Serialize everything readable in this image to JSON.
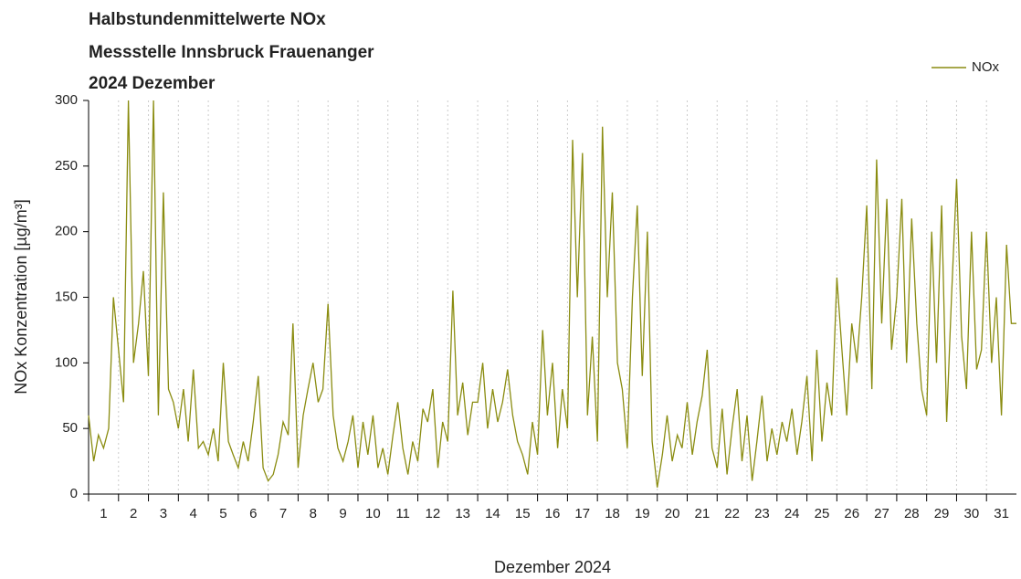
{
  "chart_data": {
    "type": "line",
    "title": "Halbstundenmittelwerte NOx",
    "subtitle": [
      "Messstelle Innsbruck Frauenanger",
      "2024 Dezember"
    ],
    "xlabel": "Dezember 2024",
    "ylabel": "NOx Konzentration [µg/m³]",
    "xlim": [
      1,
      32
    ],
    "xticks": [
      1,
      2,
      3,
      4,
      5,
      6,
      7,
      8,
      9,
      10,
      11,
      12,
      13,
      14,
      15,
      16,
      17,
      18,
      19,
      20,
      21,
      22,
      23,
      24,
      25,
      26,
      27,
      28,
      29,
      30,
      31
    ],
    "ylim": [
      0,
      300
    ],
    "yticks": [
      0,
      50,
      100,
      150,
      200,
      250,
      300
    ],
    "grid": true,
    "legend": "upper right",
    "x": [
      1,
      1.17,
      1.33,
      1.5,
      1.67,
      1.83,
      2,
      2.17,
      2.33,
      2.5,
      2.67,
      2.83,
      3,
      3.17,
      3.33,
      3.5,
      3.67,
      3.83,
      4,
      4.17,
      4.33,
      4.5,
      4.67,
      4.83,
      5,
      5.17,
      5.33,
      5.5,
      5.67,
      5.83,
      6,
      6.17,
      6.33,
      6.5,
      6.67,
      6.83,
      7,
      7.17,
      7.33,
      7.5,
      7.67,
      7.83,
      8,
      8.17,
      8.33,
      8.5,
      8.67,
      8.83,
      9,
      9.17,
      9.33,
      9.5,
      9.67,
      9.83,
      10,
      10.17,
      10.33,
      10.5,
      10.67,
      10.83,
      11,
      11.17,
      11.33,
      11.5,
      11.67,
      11.83,
      12,
      12.17,
      12.33,
      12.5,
      12.67,
      12.83,
      13,
      13.17,
      13.33,
      13.5,
      13.67,
      13.83,
      14,
      14.17,
      14.33,
      14.5,
      14.67,
      14.83,
      15,
      15.17,
      15.33,
      15.5,
      15.67,
      15.83,
      16,
      16.17,
      16.33,
      16.5,
      16.67,
      16.83,
      17,
      17.17,
      17.33,
      17.5,
      17.67,
      17.83,
      18,
      18.17,
      18.33,
      18.5,
      18.67,
      18.83,
      19,
      19.17,
      19.33,
      19.5,
      19.67,
      19.83,
      20,
      20.17,
      20.33,
      20.5,
      20.67,
      20.83,
      21,
      21.17,
      21.33,
      21.5,
      21.67,
      21.83,
      22,
      22.17,
      22.33,
      22.5,
      22.67,
      22.83,
      23,
      23.17,
      23.33,
      23.5,
      23.67,
      23.83,
      24,
      24.17,
      24.33,
      24.5,
      24.67,
      24.83,
      25,
      25.17,
      25.33,
      25.5,
      25.67,
      25.83,
      26,
      26.17,
      26.33,
      26.5,
      26.67,
      26.83,
      27,
      27.17,
      27.33,
      27.5,
      27.67,
      27.83,
      28,
      28.17,
      28.33,
      28.5,
      28.67,
      28.83,
      29,
      29.17,
      29.33,
      29.5,
      29.67,
      29.83,
      30,
      30.17,
      30.33,
      30.5,
      30.67,
      30.83,
      31,
      31.17,
      31.33,
      31.5,
      31.67,
      31.83,
      32
    ],
    "series": [
      {
        "name": "NOx",
        "color": "#8a8c10",
        "values": [
          60,
          25,
          45,
          35,
          50,
          150,
          110,
          70,
          300,
          100,
          130,
          170,
          90,
          300,
          60,
          230,
          80,
          70,
          50,
          80,
          40,
          95,
          35,
          40,
          30,
          50,
          25,
          100,
          40,
          30,
          20,
          40,
          25,
          55,
          90,
          20,
          10,
          15,
          30,
          55,
          45,
          130,
          20,
          60,
          80,
          100,
          70,
          80,
          145,
          60,
          35,
          25,
          40,
          60,
          20,
          55,
          30,
          60,
          20,
          35,
          15,
          45,
          70,
          35,
          15,
          40,
          25,
          65,
          55,
          80,
          20,
          55,
          40,
          155,
          60,
          85,
          45,
          70,
          70,
          100,
          50,
          80,
          55,
          70,
          95,
          60,
          40,
          30,
          15,
          55,
          30,
          125,
          60,
          100,
          35,
          80,
          50,
          270,
          150,
          260,
          60,
          120,
          40,
          280,
          150,
          230,
          100,
          80,
          35,
          150,
          220,
          90,
          200,
          40,
          5,
          30,
          60,
          25,
          45,
          35,
          70,
          30,
          55,
          75,
          110,
          35,
          20,
          65,
          15,
          50,
          80,
          25,
          60,
          10,
          40,
          75,
          25,
          50,
          30,
          55,
          40,
          65,
          30,
          55,
          90,
          25,
          110,
          40,
          85,
          60,
          165,
          110,
          60,
          130,
          100,
          150,
          220,
          80,
          255,
          130,
          225,
          110,
          150,
          225,
          100,
          210,
          130,
          80,
          60,
          200,
          100,
          220,
          55,
          150,
          240,
          120,
          80,
          200,
          95,
          110,
          200,
          100,
          150,
          60,
          190,
          130,
          130
        ]
      }
    ]
  }
}
